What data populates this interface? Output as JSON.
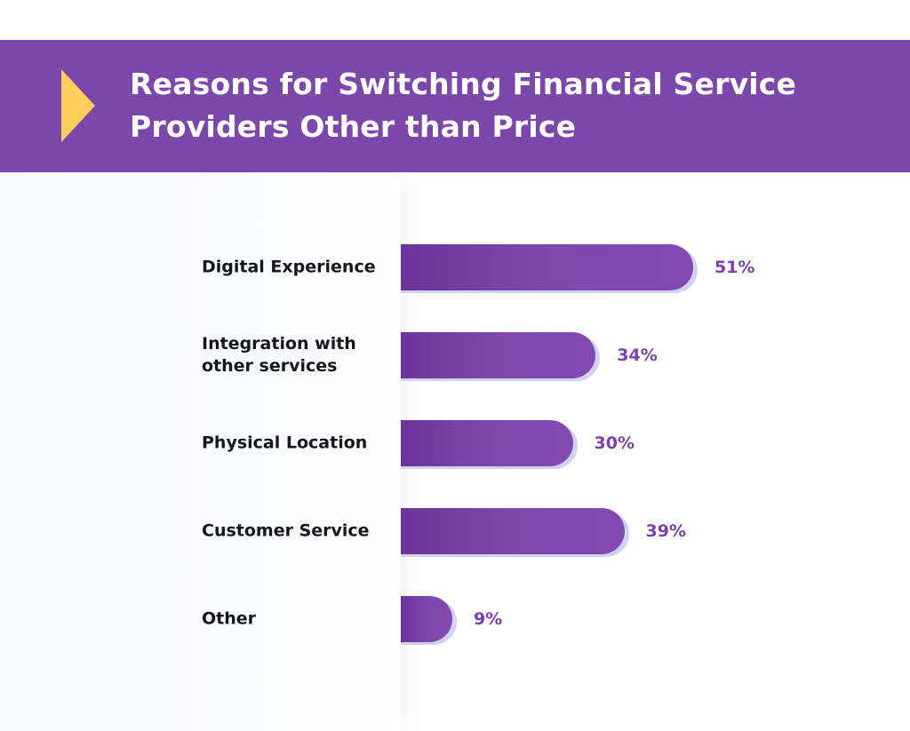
{
  "colors": {
    "banner": "#7b47ab",
    "arrow": "#ffcd5b",
    "bar": "#7e46ab",
    "bar_shadow": "#cfd3ef",
    "value_text": "#7b3fb0"
  },
  "chart_data": {
    "type": "bar",
    "orientation": "horizontal",
    "title": "Reasons for Switching Financial Service Providers Other than Price",
    "categories": [
      "Digital Experience",
      "Integration with other services",
      "Physical Location",
      "Customer Service",
      "Other"
    ],
    "values": [
      51,
      34,
      30,
      39,
      9
    ],
    "value_labels": [
      "51%",
      "34%",
      "30%",
      "39%",
      "9%"
    ],
    "xlim": [
      0,
      100
    ],
    "grid": false,
    "legend": "none"
  }
}
